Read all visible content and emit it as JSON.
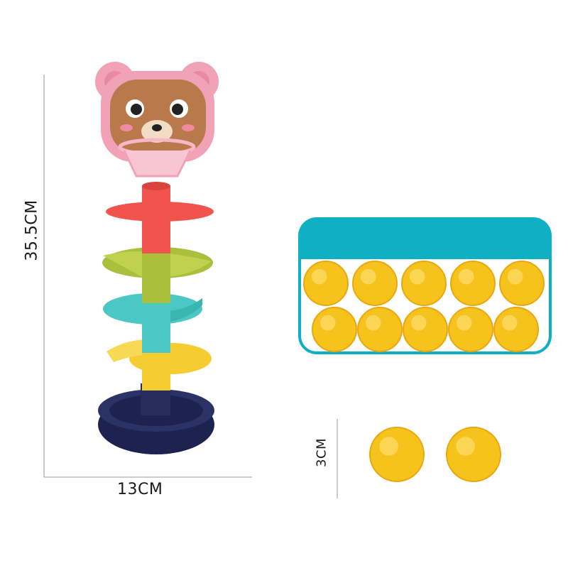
{
  "dimensions": {
    "height_label": "35.5CM",
    "width_label": "13CM",
    "ball_label": "3CM"
  },
  "colors": {
    "box_teal": "#0fb0c4",
    "ball_yellow": "#f6c21c",
    "base_navy": "#1c2350",
    "tier_red": "#f0544c",
    "tier_green": "#a9bf3d",
    "tier_cyan": "#4cc8c4",
    "tier_yellow": "#f5cc32",
    "bear_pink": "#f2a2b6",
    "bear_brown": "#b87a4a"
  },
  "box_ball_count": 10,
  "loose_ball_count": 2
}
